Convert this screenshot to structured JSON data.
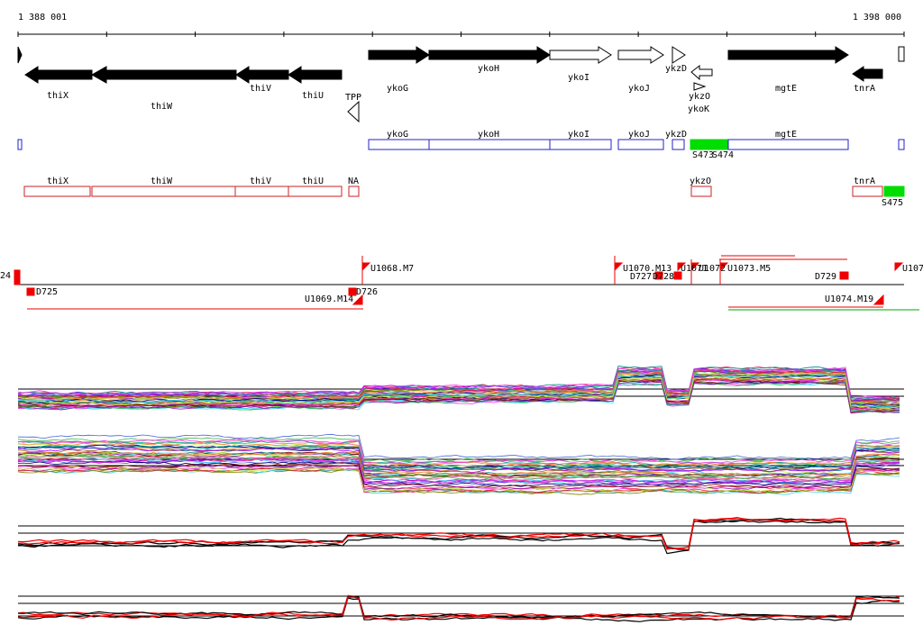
{
  "ruler": {
    "start": "1 388 001",
    "end": "1 398 000"
  },
  "genes": [
    "thiX",
    "thiW",
    "thiV",
    "thiU",
    "TPP",
    "ykoG",
    "ykoH",
    "ykoI",
    "ykoJ",
    "ykzD",
    "ykzO",
    "ykoK",
    "mgtE",
    "tnrA"
  ],
  "blue_track": [
    "ykoG",
    "ykoH",
    "ykoI",
    "ykoJ",
    "ykzD",
    "mgtE",
    "S473",
    "S474"
  ],
  "red_track": [
    "thiX",
    "thiW",
    "thiV",
    "thiU",
    "NA",
    "ykzO",
    "tnrA",
    "S475"
  ],
  "markers": [
    "24",
    "D725",
    "U1068.M7",
    "U1069.M14",
    "D726",
    "U1070.M13",
    "D727",
    "D728",
    "U1071",
    "U1072",
    "U1073.M5",
    "D729",
    "U1074.M19",
    "U107"
  ]
}
